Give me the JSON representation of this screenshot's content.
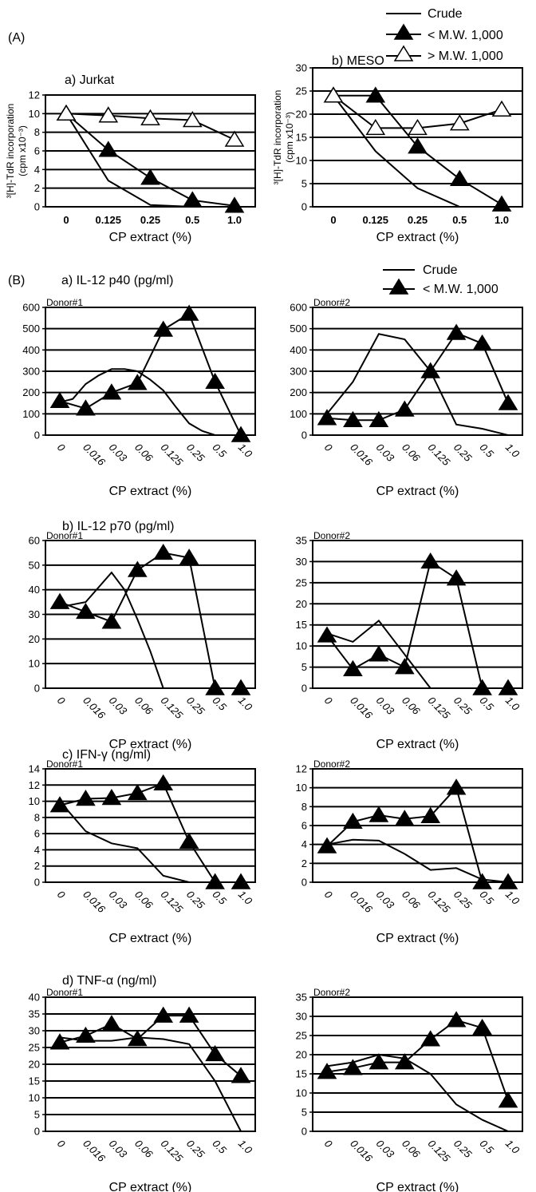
{
  "figure": {
    "panel_A_label": "(A)",
    "panel_B_label": "(B)",
    "legend_A": [
      "Crude",
      "< M.W. 1,000",
      "> M.W. 1,000"
    ],
    "legend_B": [
      "Crude",
      "< M.W. 1,000"
    ],
    "section_titles": {
      "b_a": "a) IL-12 p40 (pg/ml)",
      "b_b": "b) IL-12 p70 (pg/ml)",
      "b_c": "c) IFN-γ (ng/ml)",
      "b_d": "d) TNF-α (ng/ml)"
    }
  },
  "chart_data": [
    {
      "id": "A-jurkat",
      "type": "line",
      "title": "a) Jurkat",
      "ylabel_lines": [
        "³[H]-TdR incorporation",
        "(cpm x10⁻³)"
      ],
      "xlabel": "CP extract (%)",
      "categories": [
        "0",
        "0.125",
        "0.25",
        "0.5",
        "1.0"
      ],
      "ylim": [
        0,
        12
      ],
      "yticks": [
        0,
        2,
        4,
        6,
        8,
        10,
        12
      ],
      "x_rotated": false,
      "grid": "horizontal",
      "series": [
        {
          "name": "Crude",
          "marker": "none",
          "x": [
            0,
            1,
            2,
            3,
            4
          ],
          "values": [
            10,
            2.8,
            0.2,
            0,
            0
          ]
        },
        {
          "name": "< M.W. 1,000",
          "marker": "filled",
          "x": [
            0,
            1,
            2,
            3,
            4
          ],
          "values": [
            10,
            6.1,
            3.1,
            0.7,
            0.1
          ]
        },
        {
          "name": "> M.W. 1,000",
          "marker": "open",
          "x": [
            0,
            1,
            2,
            3,
            4
          ],
          "values": [
            10,
            9.8,
            9.5,
            9.3,
            7.2
          ]
        }
      ]
    },
    {
      "id": "A-meso",
      "type": "line",
      "title": "b) MESO",
      "ylabel_lines": [
        "³[H]-TdR incorporation",
        "(cpm x10⁻³)"
      ],
      "xlabel": "CP extract (%)",
      "categories": [
        "0",
        "0.125",
        "0.25",
        "0.5",
        "1.0"
      ],
      "ylim": [
        0,
        30
      ],
      "yticks": [
        0,
        5,
        10,
        15,
        20,
        25,
        30
      ],
      "x_rotated": false,
      "grid": "horizontal",
      "series": [
        {
          "name": "Crude",
          "marker": "none",
          "x": [
            0,
            1,
            2,
            3,
            4
          ],
          "values": [
            24,
            12,
            4,
            0,
            0
          ]
        },
        {
          "name": "< M.W. 1,000",
          "marker": "filled",
          "x": [
            0,
            1,
            2,
            3,
            4
          ],
          "values": [
            24,
            24,
            13,
            6,
            0.5
          ]
        },
        {
          "name": "> M.W. 1,000",
          "marker": "open",
          "x": [
            0,
            1,
            2,
            3,
            4
          ],
          "values": [
            24,
            17,
            17,
            18,
            21
          ]
        }
      ]
    },
    {
      "id": "B-p40-d1",
      "type": "line",
      "donor": "Donor#1",
      "xlabel": "CP extract (%)",
      "categories": [
        "0",
        "0.016",
        "0.03",
        "0.06",
        "0.125",
        "0.25",
        "0.5",
        "1.0"
      ],
      "ylim": [
        0,
        600
      ],
      "yticks": [
        0,
        100,
        200,
        300,
        400,
        500,
        600
      ],
      "x_rotated": true,
      "grid": "horizontal",
      "series": [
        {
          "name": "Crude",
          "marker": "none",
          "x": [
            0,
            0.5,
            1,
            1.5,
            2,
            2.5,
            3,
            3.5,
            4,
            4.5,
            5,
            5.5,
            6
          ],
          "values": [
            155,
            170,
            240,
            280,
            310,
            310,
            300,
            260,
            210,
            130,
            55,
            20,
            0
          ]
        },
        {
          "name": "< M.W. 1,000",
          "marker": "filled",
          "x": [
            0,
            1,
            2,
            3,
            4,
            5,
            6,
            7
          ],
          "values": [
            160,
            125,
            200,
            245,
            495,
            570,
            250,
            0
          ]
        }
      ]
    },
    {
      "id": "B-p40-d2",
      "type": "line",
      "donor": "Donor#2",
      "xlabel": "CP extract (%)",
      "categories": [
        "0",
        "0.016",
        "0.03",
        "0.06",
        "0.125",
        "0.25",
        "0.5",
        "1.0"
      ],
      "ylim": [
        0,
        600
      ],
      "yticks": [
        0,
        100,
        200,
        300,
        400,
        500,
        600
      ],
      "x_rotated": true,
      "grid": "horizontal",
      "series": [
        {
          "name": "Crude",
          "marker": "none",
          "x": [
            0,
            1,
            2,
            3,
            4,
            5,
            6,
            7
          ],
          "values": [
            100,
            250,
            475,
            450,
            300,
            50,
            30,
            0
          ]
        },
        {
          "name": "< M.W. 1,000",
          "marker": "filled",
          "x": [
            0,
            1,
            2,
            3,
            4,
            5,
            6,
            7
          ],
          "values": [
            80,
            70,
            70,
            120,
            300,
            480,
            430,
            150
          ]
        }
      ]
    },
    {
      "id": "B-p70-d1",
      "type": "line",
      "donor": "Donor#1",
      "xlabel": "CP extract (%)",
      "categories": [
        "0",
        "0.016",
        "0.03",
        "0.06",
        "0.125",
        "0.25",
        "0.5",
        "1.0"
      ],
      "ylim": [
        0,
        60
      ],
      "yticks": [
        0,
        10,
        20,
        30,
        40,
        50,
        60
      ],
      "x_rotated": true,
      "grid": "horizontal",
      "series": [
        {
          "name": "Crude",
          "marker": "none",
          "x": [
            0,
            1,
            2,
            2.5,
            3,
            3.5,
            4
          ],
          "values": [
            33,
            35,
            47,
            40,
            28,
            15,
            0
          ]
        },
        {
          "name": "< M.W. 1,000",
          "marker": "filled",
          "x": [
            0,
            1,
            2,
            3,
            4,
            5,
            6,
            7
          ],
          "values": [
            35,
            31,
            27,
            48,
            55,
            53,
            0,
            0
          ]
        }
      ]
    },
    {
      "id": "B-p70-d2",
      "type": "line",
      "donor": "Donor#2",
      "xlabel": "CP extract (%)",
      "categories": [
        "0",
        "0.016",
        "0.03",
        "0.06",
        "0.125",
        "0.25",
        "0.5",
        "1.0"
      ],
      "ylim": [
        0,
        35
      ],
      "yticks": [
        0,
        5,
        10,
        15,
        20,
        25,
        30,
        35
      ],
      "x_rotated": true,
      "grid": "horizontal",
      "series": [
        {
          "name": "Crude",
          "marker": "none",
          "x": [
            0,
            1,
            2,
            3,
            4
          ],
          "values": [
            13,
            11,
            16,
            8,
            0
          ]
        },
        {
          "name": "< M.W. 1,000",
          "marker": "filled",
          "x": [
            0,
            1,
            2,
            3,
            4,
            5,
            6,
            7
          ],
          "values": [
            12.5,
            4.5,
            8,
            5,
            30,
            26,
            0,
            0
          ]
        }
      ]
    },
    {
      "id": "B-ifn-d1",
      "type": "line",
      "donor": "Donor#1",
      "xlabel": "CP extract (%)",
      "categories": [
        "0",
        "0.016",
        "0.03",
        "0.06",
        "0.125",
        "0.25",
        "0.5",
        "1.0"
      ],
      "ylim": [
        0,
        14
      ],
      "yticks": [
        0,
        2,
        4,
        6,
        8,
        10,
        12,
        14
      ],
      "x_rotated": true,
      "grid": "horizontal",
      "series": [
        {
          "name": "Crude",
          "marker": "none",
          "x": [
            0,
            1,
            2,
            3,
            4,
            5
          ],
          "values": [
            10,
            6.3,
            4.8,
            4.2,
            0.8,
            0
          ]
        },
        {
          "name": "< M.W. 1,000",
          "marker": "filled",
          "x": [
            0,
            1,
            2,
            3,
            4,
            5,
            6,
            7
          ],
          "values": [
            9.5,
            10.3,
            10.4,
            11,
            12.2,
            5,
            0,
            0
          ]
        }
      ]
    },
    {
      "id": "B-ifn-d2",
      "type": "line",
      "donor": "Donor#2",
      "xlabel": "CP extract (%)",
      "categories": [
        "0",
        "0.016",
        "0.03",
        "0.06",
        "0.125",
        "0.25",
        "0.5",
        "1.0"
      ],
      "ylim": [
        0,
        12
      ],
      "yticks": [
        0,
        2,
        4,
        6,
        8,
        10,
        12
      ],
      "x_rotated": true,
      "grid": "horizontal",
      "series": [
        {
          "name": "Crude",
          "marker": "none",
          "x": [
            0,
            1,
            2,
            3,
            4,
            5,
            6,
            7
          ],
          "values": [
            4,
            4.5,
            4.4,
            3,
            1.3,
            1.5,
            0.3,
            0
          ]
        },
        {
          "name": "< M.W. 1,000",
          "marker": "filled",
          "x": [
            0,
            1,
            2,
            3,
            4,
            5,
            6,
            7
          ],
          "values": [
            3.8,
            6.4,
            7.1,
            6.7,
            7,
            10,
            0,
            0
          ]
        }
      ]
    },
    {
      "id": "B-tnf-d1",
      "type": "line",
      "donor": "Donor#1",
      "xlabel": "CP extract (%)",
      "categories": [
        "0",
        "0.016",
        "0.03",
        "0.06",
        "0.125",
        "0.25",
        "0.5",
        "1.0"
      ],
      "ylim": [
        0,
        40
      ],
      "yticks": [
        0,
        5,
        10,
        15,
        20,
        25,
        30,
        35,
        40
      ],
      "x_rotated": true,
      "grid": "horizontal",
      "series": [
        {
          "name": "Crude",
          "marker": "none",
          "x": [
            0,
            1,
            2,
            3,
            4,
            5,
            6,
            7
          ],
          "values": [
            28,
            27,
            27,
            28,
            27.5,
            26,
            15,
            0
          ]
        },
        {
          "name": "< M.W. 1,000",
          "marker": "filled",
          "x": [
            0,
            1,
            2,
            3,
            4,
            5,
            6,
            7
          ],
          "values": [
            26.5,
            28.5,
            32,
            27.5,
            34.5,
            34.5,
            23,
            16.5
          ]
        }
      ]
    },
    {
      "id": "B-tnf-d2",
      "type": "line",
      "donor": "Donor#2",
      "xlabel": "CP extract (%)",
      "categories": [
        "0",
        "0.016",
        "0.03",
        "0.06",
        "0.125",
        "0.25",
        "0.5",
        "1.0"
      ],
      "ylim": [
        0,
        35
      ],
      "yticks": [
        0,
        5,
        10,
        15,
        20,
        25,
        30,
        35
      ],
      "x_rotated": true,
      "grid": "horizontal",
      "series": [
        {
          "name": "Crude",
          "marker": "none",
          "x": [
            0,
            1,
            2,
            3,
            4,
            5,
            6,
            7
          ],
          "values": [
            17,
            18,
            20,
            19,
            15,
            7,
            3,
            0
          ]
        },
        {
          "name": "< M.W. 1,000",
          "marker": "filled",
          "x": [
            0,
            1,
            2,
            3,
            4,
            5,
            6,
            7
          ],
          "values": [
            15.5,
            16.5,
            18,
            18,
            24,
            29,
            27,
            8
          ]
        }
      ]
    }
  ]
}
